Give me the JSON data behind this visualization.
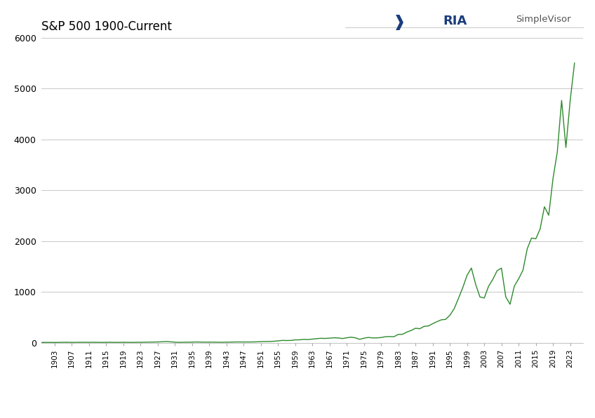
{
  "title": "S&P 500 1900-Current",
  "line_color": "#2d8a2d",
  "background_color": "#ffffff",
  "grid_color": "#c8c8c8",
  "ylim": [
    0,
    6000
  ],
  "yticks": [
    0,
    1000,
    2000,
    3000,
    4000,
    5000,
    6000
  ],
  "ytick_labels": [
    "0",
    "1000",
    "2000",
    "3000",
    "4000",
    "5000",
    "6000"
  ],
  "xlabel": "",
  "ylabel": "",
  "xtick_labels": [
    "1903",
    "1907",
    "1911",
    "1915",
    "1919",
    "1923",
    "1927",
    "1931",
    "1935",
    "1939",
    "1943",
    "1947",
    "1951",
    "1955",
    "1959",
    "1963",
    "1967",
    "1971",
    "1975",
    "1979",
    "1983",
    "1987",
    "1991",
    "1995",
    "1999",
    "2003",
    "2007",
    "2011",
    "2015",
    "2019",
    "2023"
  ],
  "logo_text_ria": "RIA",
  "logo_text_sv": "SimpleVisor",
  "xlim_start": 1900,
  "xlim_end": 2026,
  "sp500_data": {
    "1900": 6.2,
    "1901": 6.7,
    "1902": 7.2,
    "1903": 6.2,
    "1904": 7.5,
    "1905": 9.0,
    "1906": 9.5,
    "1907": 7.0,
    "1908": 8.5,
    "1909": 9.8,
    "1910": 9.2,
    "1911": 9.0,
    "1912": 9.5,
    "1913": 8.5,
    "1914": 7.5,
    "1915": 8.5,
    "1916": 9.5,
    "1917": 8.0,
    "1918": 8.0,
    "1919": 9.5,
    "1920": 8.5,
    "1921": 7.5,
    "1922": 9.0,
    "1923": 9.5,
    "1924": 10.5,
    "1925": 12.5,
    "1926": 13.5,
    "1927": 15.5,
    "1928": 19.5,
    "1929": 24.0,
    "1930": 18.0,
    "1931": 12.0,
    "1932": 7.5,
    "1933": 10.5,
    "1934": 10.5,
    "1935": 13.0,
    "1936": 15.5,
    "1937": 13.5,
    "1938": 11.5,
    "1939": 12.5,
    "1940": 11.5,
    "1941": 10.5,
    "1942": 9.5,
    "1943": 11.5,
    "1944": 12.5,
    "1945": 15.5,
    "1946": 15.5,
    "1947": 15.2,
    "1948": 15.5,
    "1949": 16.0,
    "1950": 18.5,
    "1951": 22.0,
    "1952": 24.5,
    "1953": 24.5,
    "1954": 29.7,
    "1955": 36.5,
    "1956": 46.5,
    "1957": 44.0,
    "1958": 46.0,
    "1959": 57.0,
    "1960": 58.0,
    "1961": 66.0,
    "1962": 63.0,
    "1963": 72.0,
    "1964": 81.0,
    "1965": 88.0,
    "1966": 85.0,
    "1967": 91.0,
    "1968": 98.0,
    "1969": 95.0,
    "1970": 83.0,
    "1971": 98.0,
    "1972": 110.0,
    "1973": 97.0,
    "1974": 68.0,
    "1975": 90.0,
    "1976": 105.0,
    "1977": 95.0,
    "1978": 96.0,
    "1979": 103.0,
    "1980": 119.0,
    "1981": 122.0,
    "1982": 120.0,
    "1983": 165.0,
    "1984": 167.0,
    "1985": 211.0,
    "1986": 242.0,
    "1987": 286.0,
    "1988": 276.0,
    "1989": 323.0,
    "1990": 330.0,
    "1991": 375.0,
    "1992": 416.0,
    "1993": 451.0,
    "1994": 460.0,
    "1995": 541.0,
    "1996": 670.0,
    "1997": 873.0,
    "1998": 1085.0,
    "1999": 1327.0,
    "2000": 1469.0,
    "2001": 1148.0,
    "2002": 900.0,
    "2003": 880.0,
    "2004": 1111.0,
    "2005": 1248.0,
    "2006": 1418.0,
    "2007": 1468.0,
    "2008": 903.0,
    "2009": 757.0,
    "2010": 1115.0,
    "2011": 1258.0,
    "2012": 1426.0,
    "2013": 1848.0,
    "2014": 2059.0,
    "2015": 2044.0,
    "2016": 2239.0,
    "2017": 2674.0,
    "2018": 2507.0,
    "2019": 3231.0,
    "2020": 3756.0,
    "2021": 4766.0,
    "2022": 3840.0,
    "2023": 4769.0,
    "2024": 5500.0
  }
}
